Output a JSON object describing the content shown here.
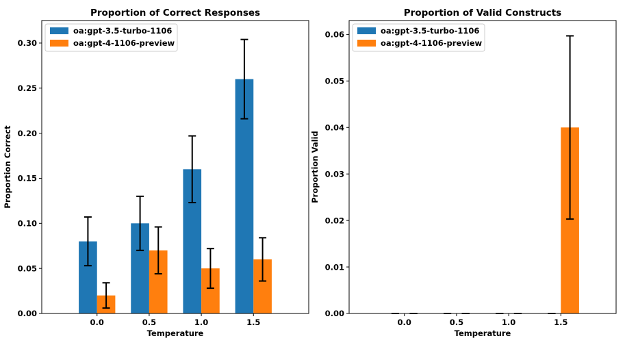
{
  "chart_data": [
    {
      "type": "bar",
      "title": "Proportion of Correct Responses",
      "xlabel": "Temperature",
      "ylabel": "Proportion Correct",
      "categories": [
        "0.0",
        "0.5",
        "1.0",
        "1.5"
      ],
      "ylim": [
        0,
        0.325
      ],
      "yticks": [
        "0.00",
        "0.05",
        "0.10",
        "0.15",
        "0.20",
        "0.25",
        "0.30"
      ],
      "grid": false,
      "legend_position": "top-left",
      "series": [
        {
          "name": "oa:gpt-3.5-turbo-1106",
          "color": "#1f77b4",
          "values": [
            0.08,
            0.1,
            0.16,
            0.26
          ],
          "error_low": [
            0.053,
            0.07,
            0.123,
            0.216
          ],
          "error_high": [
            0.107,
            0.13,
            0.197,
            0.304
          ]
        },
        {
          "name": "oa:gpt-4-1106-preview",
          "color": "#ff7f0e",
          "values": [
            0.02,
            0.07,
            0.05,
            0.06
          ],
          "error_low": [
            0.006,
            0.044,
            0.028,
            0.036
          ],
          "error_high": [
            0.034,
            0.096,
            0.072,
            0.084
          ]
        }
      ]
    },
    {
      "type": "bar",
      "title": "Proportion of Valid Constructs",
      "xlabel": "Temperature",
      "ylabel": "Proportion Valid",
      "categories": [
        "0.0",
        "0.5",
        "1.0",
        "1.5"
      ],
      "ylim": [
        0,
        0.063
      ],
      "yticks": [
        "0.00",
        "0.01",
        "0.02",
        "0.03",
        "0.04",
        "0.05",
        "0.06"
      ],
      "grid": false,
      "legend_position": "top-left",
      "series": [
        {
          "name": "oa:gpt-3.5-turbo-1106",
          "color": "#1f77b4",
          "values": [
            0,
            0,
            0,
            0
          ],
          "error_low": [
            0,
            0,
            0,
            0
          ],
          "error_high": [
            0,
            0,
            0,
            0
          ]
        },
        {
          "name": "oa:gpt-4-1106-preview",
          "color": "#ff7f0e",
          "values": [
            0,
            0,
            0,
            0.04
          ],
          "error_low": [
            0,
            0,
            0,
            0.0203
          ],
          "error_high": [
            0,
            0,
            0,
            0.0597
          ]
        }
      ]
    }
  ]
}
